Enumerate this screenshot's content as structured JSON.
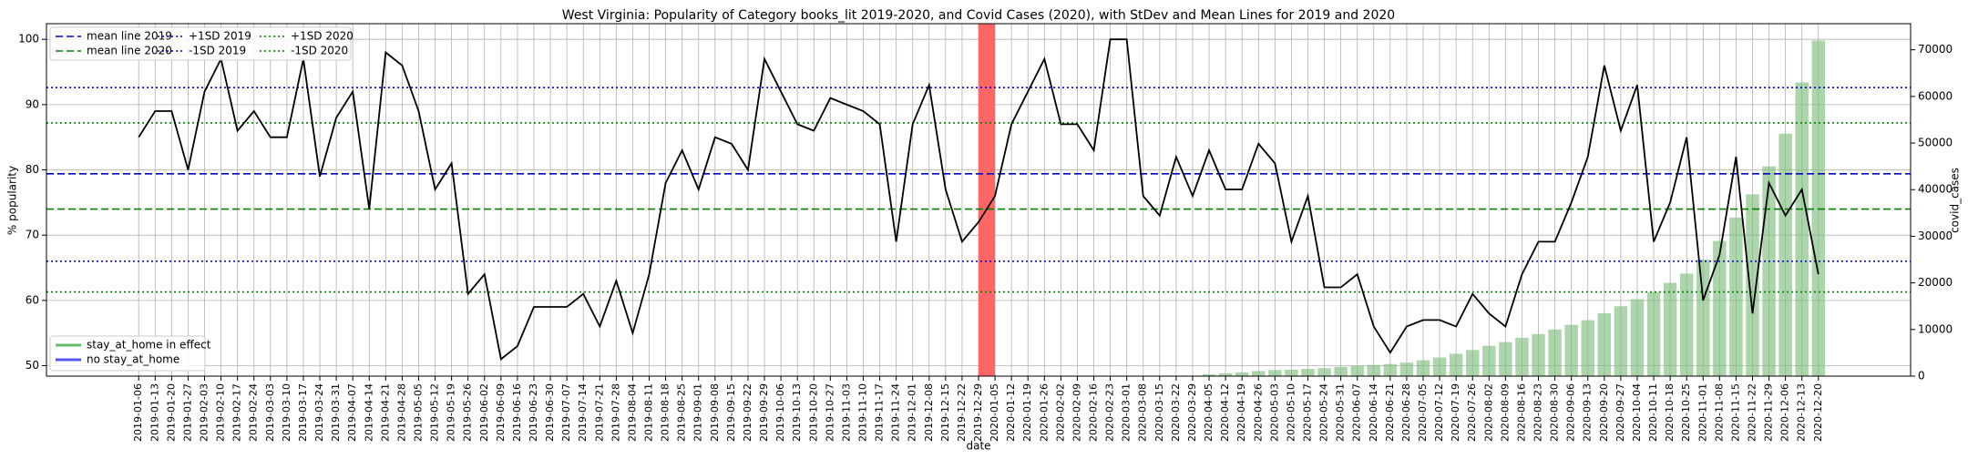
{
  "chart_data": {
    "type": "line",
    "title": "West Virginia: Popularity of Category books_lit 2019-2020, and Covid Cases (2020), with StDev and Mean Lines for 2019 and 2020",
    "x_label": "date",
    "y_label": "% popularity",
    "y2_label": "covid_cases",
    "categories": [
      "2019-01-06",
      "2019-01-13",
      "2019-01-20",
      "2019-01-27",
      "2019-02-03",
      "2019-02-10",
      "2019-02-17",
      "2019-02-24",
      "2019-03-03",
      "2019-03-10",
      "2019-03-17",
      "2019-03-24",
      "2019-03-31",
      "2019-04-07",
      "2019-04-14",
      "2019-04-21",
      "2019-04-28",
      "2019-05-05",
      "2019-05-12",
      "2019-05-19",
      "2019-05-26",
      "2019-06-02",
      "2019-06-09",
      "2019-06-16",
      "2019-06-23",
      "2019-06-30",
      "2019-07-07",
      "2019-07-14",
      "2019-07-21",
      "2019-07-28",
      "2019-08-04",
      "2019-08-11",
      "2019-08-18",
      "2019-08-25",
      "2019-09-01",
      "2019-09-08",
      "2019-09-15",
      "2019-09-22",
      "2019-09-29",
      "2019-10-06",
      "2019-10-13",
      "2019-10-20",
      "2019-10-27",
      "2019-11-03",
      "2019-11-10",
      "2019-11-17",
      "2019-11-24",
      "2019-12-01",
      "2019-12-08",
      "2019-12-15",
      "2019-12-22",
      "2019-12-29",
      "2020-01-05",
      "2020-01-12",
      "2020-01-19",
      "2020-01-26",
      "2020-02-02",
      "2020-02-09",
      "2020-02-16",
      "2020-02-23",
      "2020-03-01",
      "2020-03-08",
      "2020-03-15",
      "2020-03-22",
      "2020-03-29",
      "2020-04-05",
      "2020-04-12",
      "2020-04-19",
      "2020-04-26",
      "2020-05-03",
      "2020-05-10",
      "2020-05-17",
      "2020-05-24",
      "2020-05-31",
      "2020-06-07",
      "2020-06-14",
      "2020-06-21",
      "2020-06-28",
      "2020-07-05",
      "2020-07-12",
      "2020-07-19",
      "2020-07-26",
      "2020-08-02",
      "2020-08-09",
      "2020-08-16",
      "2020-08-23",
      "2020-08-30",
      "2020-09-06",
      "2020-09-13",
      "2020-09-20",
      "2020-09-27",
      "2020-10-04",
      "2020-10-11",
      "2020-10-18",
      "2020-10-25",
      "2020-11-01",
      "2020-11-08",
      "2020-11-15",
      "2020-11-22",
      "2020-11-29",
      "2020-12-06",
      "2020-12-13",
      "2020-12-20"
    ],
    "series": [
      {
        "name": "popularity",
        "type": "line",
        "color": "#000000",
        "values": [
          85,
          89,
          89,
          80,
          92,
          97,
          86,
          89,
          85,
          85,
          97,
          79,
          88,
          92,
          74,
          98,
          96,
          89,
          77,
          81,
          61,
          64,
          51,
          53,
          59,
          59,
          59,
          61,
          56,
          63,
          55,
          64,
          78,
          83,
          77,
          85,
          84,
          80,
          97,
          92,
          87,
          86,
          91,
          90,
          89,
          87,
          69,
          87,
          93,
          77,
          69,
          72,
          76,
          87,
          92,
          97,
          87,
          87,
          83,
          100,
          100,
          76,
          73,
          82,
          76,
          83,
          77,
          77,
          84,
          81,
          69,
          76,
          62,
          62,
          64,
          56,
          52,
          56,
          57,
          57,
          56,
          61,
          58,
          56,
          64,
          69,
          69,
          75,
          82,
          96,
          86,
          93,
          69,
          75,
          85,
          60,
          67,
          82,
          58,
          78,
          73,
          77,
          64
        ]
      },
      {
        "name": "covid_cases",
        "type": "bar",
        "axis": "y2",
        "color": "#7fbf7f",
        "values": [
          null,
          null,
          null,
          null,
          null,
          null,
          null,
          null,
          null,
          null,
          null,
          null,
          null,
          null,
          null,
          null,
          null,
          null,
          null,
          null,
          null,
          null,
          null,
          null,
          null,
          null,
          null,
          null,
          null,
          null,
          null,
          null,
          null,
          null,
          null,
          null,
          null,
          null,
          null,
          null,
          null,
          null,
          null,
          null,
          null,
          null,
          null,
          null,
          null,
          null,
          null,
          null,
          null,
          null,
          null,
          null,
          null,
          null,
          null,
          null,
          null,
          null,
          null,
          null,
          100,
          400,
          600,
          800,
          1100,
          1300,
          1400,
          1550,
          1700,
          2000,
          2200,
          2400,
          2600,
          2900,
          3400,
          4000,
          4800,
          5600,
          6500,
          7300,
          8200,
          9000,
          10000,
          11000,
          12000,
          13500,
          15000,
          16500,
          18000,
          20000,
          22000,
          25000,
          29000,
          34000,
          39000,
          45000,
          52000,
          63000,
          72000
        ]
      }
    ],
    "reference_lines": [
      {
        "name": "mean line 2019",
        "value": 79.4,
        "color": "#0000cc",
        "style": "dashed"
      },
      {
        "name": "mean line 2020",
        "value": 74.0,
        "color": "#008000",
        "style": "dashed"
      },
      {
        "name": "+1SD 2019",
        "value": 92.6,
        "color": "#0000cc",
        "style": "dotted"
      },
      {
        "name": "-1SD 2019",
        "value": 66.0,
        "color": "#0000cc",
        "style": "dotted"
      },
      {
        "name": "+1SD 2020",
        "value": 87.2,
        "color": "#008000",
        "style": "dotted"
      },
      {
        "name": "-1SD 2020",
        "value": 61.3,
        "color": "#008000",
        "style": "dotted"
      }
    ],
    "legend2": [
      {
        "name": "stay_at_home in effect",
        "color": "#66bb66"
      },
      {
        "name": "no stay_at_home",
        "color": "#5555ee"
      }
    ],
    "highlight_span": {
      "start": "2019-12-29",
      "end": "2020-01-05",
      "color": "#ff6666"
    },
    "ylim": [
      48.4,
      102.4
    ],
    "yticks": [
      50,
      60,
      70,
      80,
      90,
      100
    ],
    "y2lim": [
      0,
      75600
    ],
    "y2ticks": [
      0,
      10000,
      20000,
      30000,
      40000,
      50000,
      60000,
      70000
    ],
    "grid": true
  }
}
